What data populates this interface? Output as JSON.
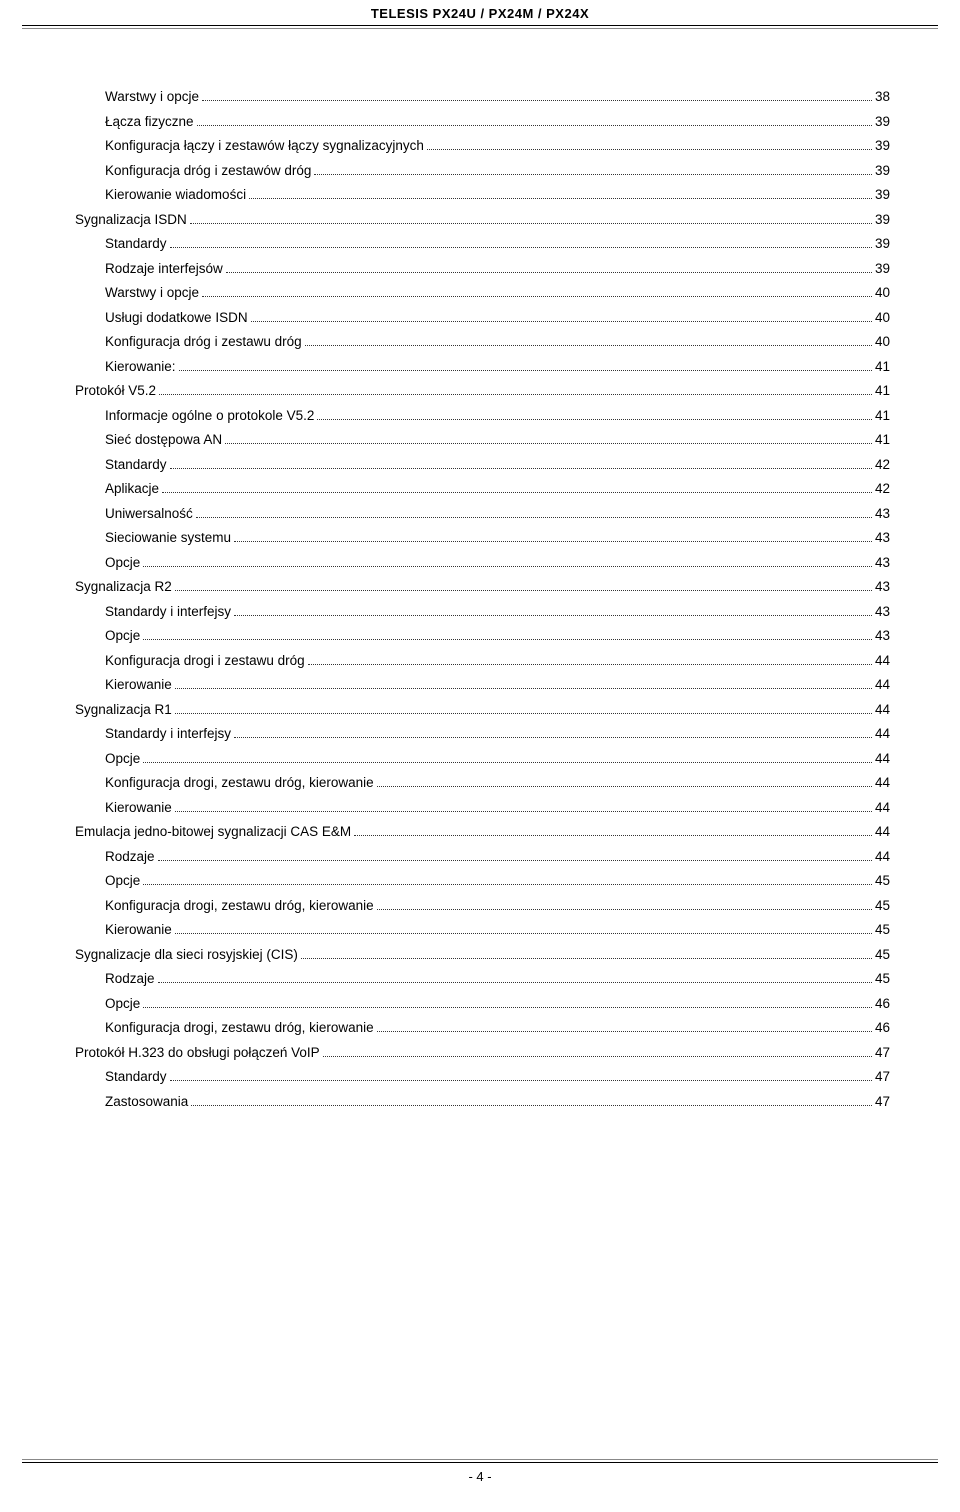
{
  "header": "TELESIS PX24U / PX24M / PX24X",
  "footer": "- 4 -",
  "text_color": "#000000",
  "background_color": "#ffffff",
  "font_size_pt": 10,
  "toc": [
    {
      "label": "Warstwy i opcje",
      "page": "38",
      "level": 2
    },
    {
      "label": "Łącza fizyczne",
      "page": "39",
      "level": 2
    },
    {
      "label": "Konfiguracja łączy i zestawów łączy sygnalizacyjnych",
      "page": "39",
      "level": 2
    },
    {
      "label": "Konfiguracja dróg i zestawów dróg",
      "page": "39",
      "level": 2
    },
    {
      "label": "Kierowanie wiadomości",
      "page": "39",
      "level": 2
    },
    {
      "label": "Sygnalizacja ISDN",
      "page": "39",
      "level": 1
    },
    {
      "label": "Standardy",
      "page": "39",
      "level": 2
    },
    {
      "label": "Rodzaje interfejsów",
      "page": "39",
      "level": 2
    },
    {
      "label": "Warstwy i opcje",
      "page": "40",
      "level": 2
    },
    {
      "label": "Usługi dodatkowe ISDN",
      "page": "40",
      "level": 2
    },
    {
      "label": "Konfiguracja dróg i zestawu dróg",
      "page": "40",
      "level": 2
    },
    {
      "label": "Kierowanie:",
      "page": "41",
      "level": 2
    },
    {
      "label": "Protokół V5.2",
      "page": "41",
      "level": 1
    },
    {
      "label": "Informacje ogólne o protokole V5.2",
      "page": "41",
      "level": 2
    },
    {
      "label": "Sieć dostępowa AN",
      "page": "41",
      "level": 2
    },
    {
      "label": "Standardy",
      "page": "42",
      "level": 2
    },
    {
      "label": "Aplikacje",
      "page": "42",
      "level": 2
    },
    {
      "label": "Uniwersalność",
      "page": "43",
      "level": 2
    },
    {
      "label": "Sieciowanie systemu",
      "page": "43",
      "level": 2
    },
    {
      "label": "Opcje",
      "page": "43",
      "level": 2
    },
    {
      "label": "Sygnalizacja R2",
      "page": "43",
      "level": 1
    },
    {
      "label": "Standardy i interfejsy",
      "page": "43",
      "level": 2
    },
    {
      "label": "Opcje",
      "page": "43",
      "level": 2
    },
    {
      "label": "Konfiguracja drogi i zestawu dróg",
      "page": "44",
      "level": 2
    },
    {
      "label": "Kierowanie",
      "page": "44",
      "level": 2
    },
    {
      "label": "Sygnalizacja R1",
      "page": "44",
      "level": 1
    },
    {
      "label": "Standardy i interfejsy",
      "page": "44",
      "level": 2
    },
    {
      "label": "Opcje",
      "page": "44",
      "level": 2
    },
    {
      "label": "Konfiguracja drogi, zestawu dróg, kierowanie",
      "page": "44",
      "level": 2
    },
    {
      "label": "Kierowanie",
      "page": "44",
      "level": 2
    },
    {
      "label": "Emulacja jedno-bitowej sygnalizacji CAS E&M",
      "page": "44",
      "level": 1
    },
    {
      "label": "Rodzaje",
      "page": "44",
      "level": 2
    },
    {
      "label": "Opcje",
      "page": "45",
      "level": 2
    },
    {
      "label": "Konfiguracja drogi, zestawu dróg, kierowanie",
      "page": "45",
      "level": 2
    },
    {
      "label": "Kierowanie",
      "page": "45",
      "level": 2
    },
    {
      "label": "Sygnalizacje dla sieci rosyjskiej (CIS)",
      "page": "45",
      "level": 1
    },
    {
      "label": "Rodzaje",
      "page": "45",
      "level": 2
    },
    {
      "label": "Opcje",
      "page": "46",
      "level": 2
    },
    {
      "label": "Konfiguracja drogi, zestawu dróg, kierowanie",
      "page": "46",
      "level": 2
    },
    {
      "label": "Protokół H.323 do obsługi połączeń VoIP",
      "page": "47",
      "level": 1
    },
    {
      "label": "Standardy",
      "page": "47",
      "level": 2
    },
    {
      "label": "Zastosowania",
      "page": "47",
      "level": 2
    }
  ]
}
